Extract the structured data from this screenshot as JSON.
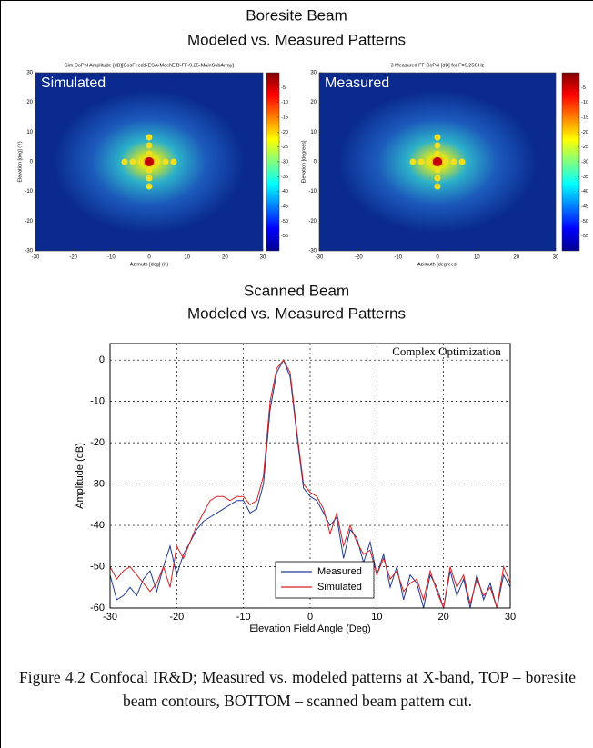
{
  "header": {
    "title": "Boresite Beam",
    "subtitle": "Modeled vs. Measured Patterns"
  },
  "section": {
    "title": "Scanned Beam",
    "subtitle": "Modeled vs. Measured Patterns"
  },
  "chart_data": [
    {
      "type": "heatmap",
      "title": "Sim CoPol Amplitude [dB][CosFeed1-ESA-MechElD-FF-9.25-MainSubArray]",
      "label": "Simulated",
      "x_label": "Azimuth [deg] (X)",
      "y_label": "Elevation [deg] (Y)",
      "xlim": [
        -30,
        30
      ],
      "ylim": [
        -30,
        30
      ],
      "xticks": [
        -30,
        -20,
        -10,
        0,
        10,
        20,
        30
      ],
      "yticks": [
        -30,
        -20,
        -10,
        0,
        10,
        20,
        30
      ],
      "colorbar_lim": [
        -60,
        0
      ],
      "colorbar_ticks": [
        -5,
        -10,
        -15,
        -20,
        -25,
        -30,
        -35,
        -40,
        -45,
        -50,
        -55
      ]
    },
    {
      "type": "heatmap",
      "title": "3  Measured FF CoPol [dB] for F=9.25GHz",
      "label": "Measured",
      "x_label": "Azimuth [degrees]",
      "y_label": "Elevation [degrees]",
      "xlim": [
        -30,
        30
      ],
      "ylim": [
        -30,
        30
      ],
      "xticks": [
        -30,
        -20,
        -10,
        0,
        10,
        20,
        30
      ],
      "yticks": [
        -30,
        -20,
        -10,
        0,
        10,
        20,
        30
      ],
      "colorbar_lim": [
        -60,
        0
      ],
      "colorbar_ticks": [
        -5,
        -10,
        -15,
        -20,
        -25,
        -30,
        -35,
        -40,
        -45,
        -50,
        -55
      ]
    },
    {
      "type": "line",
      "annotation": "Complex Optimization",
      "x_label": "Elevation Field Angle (Deg)",
      "y_label": "Amplitude (dB)",
      "xlim": [
        -30,
        30
      ],
      "ylim": [
        -60,
        4
      ],
      "xticks": [
        -30,
        -20,
        -10,
        0,
        10,
        20,
        30
      ],
      "yticks": [
        -60,
        -50,
        -40,
        -30,
        -20,
        -10,
        0
      ],
      "grid": true,
      "legend": "bottom",
      "x": [
        -30,
        -29,
        -28,
        -27,
        -26,
        -25,
        -24,
        -23,
        -22,
        -21,
        -20,
        -19,
        -18,
        -17,
        -16,
        -15,
        -14,
        -13,
        -12,
        -11,
        -10,
        -9,
        -8,
        -7,
        -6,
        -5,
        -4,
        -3,
        -2,
        -1,
        0,
        1,
        2,
        3,
        4,
        5,
        6,
        7,
        8,
        9,
        10,
        11,
        12,
        13,
        14,
        15,
        16,
        17,
        18,
        19,
        20,
        21,
        22,
        23,
        24,
        25,
        26,
        27,
        28,
        29,
        30
      ],
      "series": [
        {
          "name": "Measured",
          "color": "#1f3a93",
          "values": [
            -52,
            -58,
            -57,
            -55,
            -57,
            -53,
            -51,
            -56,
            -50,
            -45,
            -52,
            -47,
            -44,
            -41,
            -39,
            -38,
            -37,
            -36,
            -35,
            -34,
            -34,
            -37,
            -36,
            -30,
            -12,
            -3,
            0,
            -4,
            -18,
            -31,
            -33,
            -34,
            -37,
            -40,
            -38,
            -48,
            -41,
            -43,
            -49,
            -44,
            -52,
            -47,
            -55,
            -50,
            -58,
            -52,
            -54,
            -60,
            -52,
            -55,
            -60,
            -51,
            -57,
            -53,
            -60,
            -52,
            -58,
            -54,
            -60,
            -52,
            -55
          ]
        },
        {
          "name": "Simulated",
          "color": "#d62020",
          "values": [
            -50,
            -53,
            -51,
            -50,
            -52,
            -54,
            -56,
            -54,
            -50,
            -55,
            -45,
            -48,
            -44,
            -40,
            -37,
            -34,
            -33,
            -33,
            -34,
            -33,
            -33,
            -35,
            -34,
            -28,
            -10,
            -2,
            0,
            -3,
            -17,
            -30,
            -32,
            -33,
            -36,
            -42,
            -37,
            -45,
            -40,
            -44,
            -47,
            -46,
            -52,
            -48,
            -53,
            -51,
            -56,
            -54,
            -53,
            -58,
            -51,
            -56,
            -60,
            -50,
            -55,
            -52,
            -59,
            -53,
            -57,
            -55,
            -60,
            -50,
            -54
          ]
        }
      ]
    }
  ],
  "caption": "Figure 4.2 Confocal IR&D; Measured vs. modeled patterns at X-band, TOP – boresite beam contours, BOTTOM – scanned beam pattern cut."
}
